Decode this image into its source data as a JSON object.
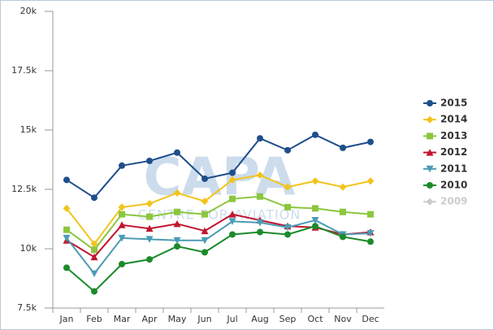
{
  "chart_data": {
    "type": "line",
    "watermark": {
      "title": "CAPA",
      "subtitle": "CENTRE FOR AVIATION"
    },
    "categories": [
      "Jan",
      "Feb",
      "Mar",
      "Apr",
      "May",
      "Jun",
      "Jul",
      "Aug",
      "Sep",
      "Oct",
      "Nov",
      "Dec"
    ],
    "ylim": [
      7500,
      20000
    ],
    "yticks": [
      {
        "value": 7500,
        "label": "7.5k"
      },
      {
        "value": 10000,
        "label": "10k"
      },
      {
        "value": 12500,
        "label": "12.5k"
      },
      {
        "value": 15000,
        "label": "15k"
      },
      {
        "value": 17500,
        "label": "17.5k"
      },
      {
        "value": 20000,
        "label": "20k"
      }
    ],
    "grid": false,
    "legend": "right",
    "series": [
      {
        "name": "2015",
        "color": "#1f4e8c",
        "marker": "circle",
        "values": [
          12900,
          12150,
          13500,
          13700,
          14050,
          12950,
          13200,
          14650,
          14150,
          14800,
          14250,
          14500
        ]
      },
      {
        "name": "2014",
        "color": "#f2c41c",
        "marker": "diamond",
        "values": [
          11700,
          10200,
          11750,
          11900,
          12350,
          12000,
          12900,
          13100,
          12600,
          12850,
          12600,
          12850
        ]
      },
      {
        "name": "2013",
        "color": "#8cc63f",
        "marker": "square",
        "values": [
          10800,
          9950,
          11450,
          11350,
          11550,
          11450,
          12100,
          12200,
          11750,
          11700,
          11550,
          11450
        ]
      },
      {
        "name": "2012",
        "color": "#c0152f",
        "marker": "triangle",
        "values": [
          10350,
          9650,
          11000,
          10850,
          11050,
          10750,
          11450,
          11200,
          10950,
          10900,
          10600,
          10700
        ]
      },
      {
        "name": "2011",
        "color": "#4a9cb5",
        "marker": "triangle-down",
        "values": [
          10450,
          8950,
          10450,
          10400,
          10350,
          10350,
          11150,
          11100,
          10900,
          11200,
          10600,
          10650
        ]
      },
      {
        "name": "2010",
        "color": "#1c8a2b",
        "marker": "circle",
        "values": [
          9200,
          8200,
          9350,
          9550,
          10100,
          9850,
          10600,
          10700,
          10600,
          10950,
          10500,
          10300
        ]
      },
      {
        "name": "2009",
        "color": "#cccccc",
        "marker": "diamond",
        "values": [
          null,
          null,
          null,
          null,
          null,
          null,
          null,
          null,
          null,
          null,
          null,
          null
        ]
      }
    ]
  }
}
